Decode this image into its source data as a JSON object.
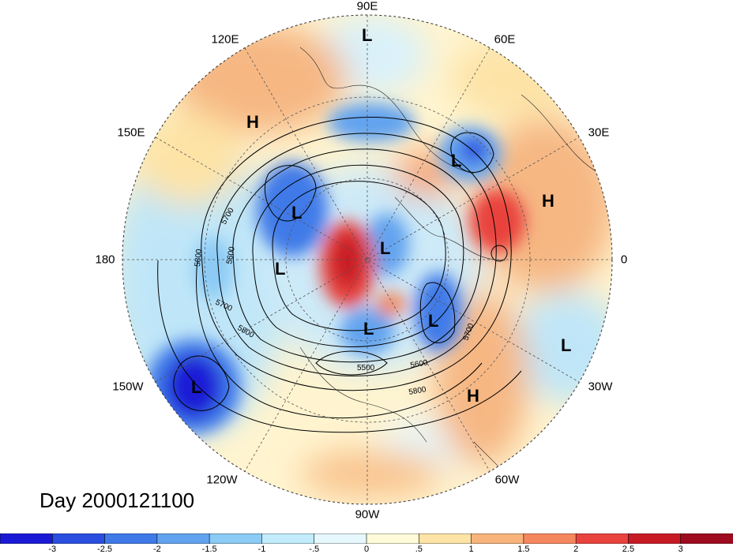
{
  "title": "Day 2000121100",
  "longitude_labels": [
    "90E",
    "60E",
    "30E",
    "0",
    "30W",
    "60W",
    "90W",
    "120W",
    "150W",
    "180",
    "150E",
    "120E"
  ],
  "centers": [
    {
      "type": "L",
      "region": "north-pole-90E"
    },
    {
      "type": "H",
      "region": "east-asia"
    },
    {
      "type": "L",
      "region": "scandinavia"
    },
    {
      "type": "H",
      "region": "western-russia"
    },
    {
      "type": "L",
      "region": "east-siberia"
    },
    {
      "type": "L",
      "region": "arctic-canada"
    },
    {
      "type": "L",
      "region": "bering"
    },
    {
      "type": "L",
      "region": "hudson-bay"
    },
    {
      "type": "L",
      "region": "north-atlantic"
    },
    {
      "type": "L",
      "region": "central-atlantic"
    },
    {
      "type": "H",
      "region": "subtropical-atlantic"
    },
    {
      "type": "L",
      "region": "central-pacific"
    }
  ],
  "contour_labels": [
    "5700",
    "5600",
    "5800",
    "5700",
    "5800",
    "5500",
    "5600",
    "5800",
    "5700"
  ],
  "colorbar": {
    "ticks": [
      "-3",
      "-2.5",
      "-2",
      "-1.5",
      "-1",
      "-.5",
      "0",
      ".5",
      "1",
      "1.5",
      "2",
      "2.5",
      "3"
    ],
    "colors": [
      "#1a1ad6",
      "#2a4fe0",
      "#3f7ae8",
      "#62a3ef",
      "#8ccbf5",
      "#c2ecfb",
      "#e6f8fd",
      "#fffbd9",
      "#fde3a6",
      "#f9b47c",
      "#f5875e",
      "#e9433e",
      "#c71a25",
      "#9e0a1e"
    ]
  }
}
